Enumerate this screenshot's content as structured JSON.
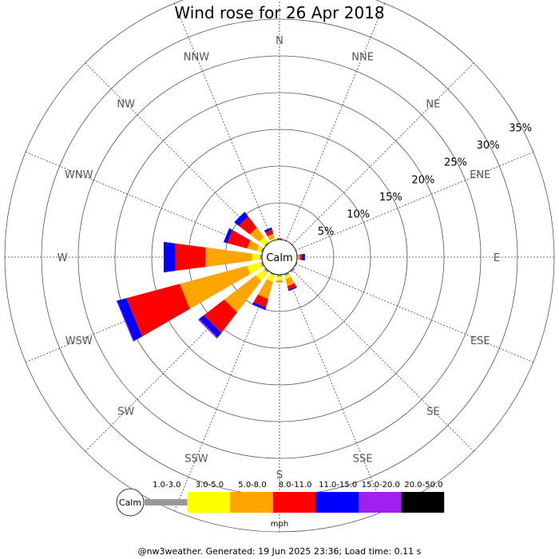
{
  "title": "Wind rose for 26 Apr 2018",
  "footer": "@nw3weather. Generated: 19 Jun 2025 23:36; Load time: 0.11 s",
  "chart_data": {
    "type": "rose",
    "title": "Wind rose for 26 Apr 2018",
    "directions": [
      "N",
      "NNE",
      "NE",
      "ENE",
      "E",
      "ESE",
      "SE",
      "SSE",
      "S",
      "SSW",
      "SW",
      "WSW",
      "W",
      "WNW",
      "NW",
      "NNW"
    ],
    "radial_ticks": [
      "5%",
      "10%",
      "15%",
      "20%",
      "25%",
      "30%",
      "35%"
    ],
    "radial_tick_values": [
      5,
      10,
      15,
      20,
      25,
      30,
      35
    ],
    "center_label": "Calm",
    "units": "mph",
    "speed_bins": [
      "1.0-3.0",
      "3.0-5.0",
      "5.0-8.0",
      "8.0-11.0",
      "11.0-15.0",
      "15.0-20.0",
      "20.0-50.0"
    ],
    "bin_colors": [
      "#999999",
      "#ffff00",
      "#ffa500",
      "#ff0000",
      "#0000ff",
      "#a020f0",
      "#000000"
    ],
    "series": [
      {
        "name": "1.0-3.0",
        "values": [
          0,
          0,
          0,
          0,
          0.2,
          0.2,
          0.3,
          0.3,
          0.3,
          0.2,
          0.3,
          0.3,
          0.3,
          0.3,
          0.2,
          0
        ]
      },
      {
        "name": "3.0-5.0",
        "values": [
          0,
          0,
          0,
          0,
          0,
          0,
          0,
          0.4,
          0.5,
          0.9,
          1.4,
          1.9,
          1.1,
          0.5,
          0.9,
          0.3
        ]
      },
      {
        "name": "5.0-8.0",
        "values": [
          0,
          0,
          0,
          0,
          0.2,
          0,
          0,
          1.0,
          0.3,
          2.4,
          5.4,
          9.5,
          6.4,
          1.4,
          1.6,
          0.6
        ]
      },
      {
        "name": "8.0-11.0",
        "values": [
          0.2,
          0,
          0,
          0,
          0.3,
          0,
          0,
          0.5,
          0,
          1.2,
          3.5,
          7.5,
          4.1,
          2.8,
          1.9,
          0.6
        ]
      },
      {
        "name": "11.0-15.0",
        "values": [
          0,
          0,
          0,
          0,
          0.4,
          0,
          0,
          0.2,
          0,
          0.3,
          0.8,
          1.3,
          1.6,
          0.5,
          0.8,
          0.3
        ]
      },
      {
        "name": "15.0-20.0",
        "values": [
          0,
          0,
          0,
          0,
          0,
          0,
          0,
          0,
          0,
          0.1,
          0.2,
          0.1,
          0,
          0,
          0,
          0
        ]
      },
      {
        "name": "20.0-50.0",
        "values": [
          0,
          0,
          0,
          0,
          0,
          0,
          0,
          0,
          0,
          0,
          0,
          0,
          0,
          0,
          0,
          0
        ]
      }
    ]
  }
}
